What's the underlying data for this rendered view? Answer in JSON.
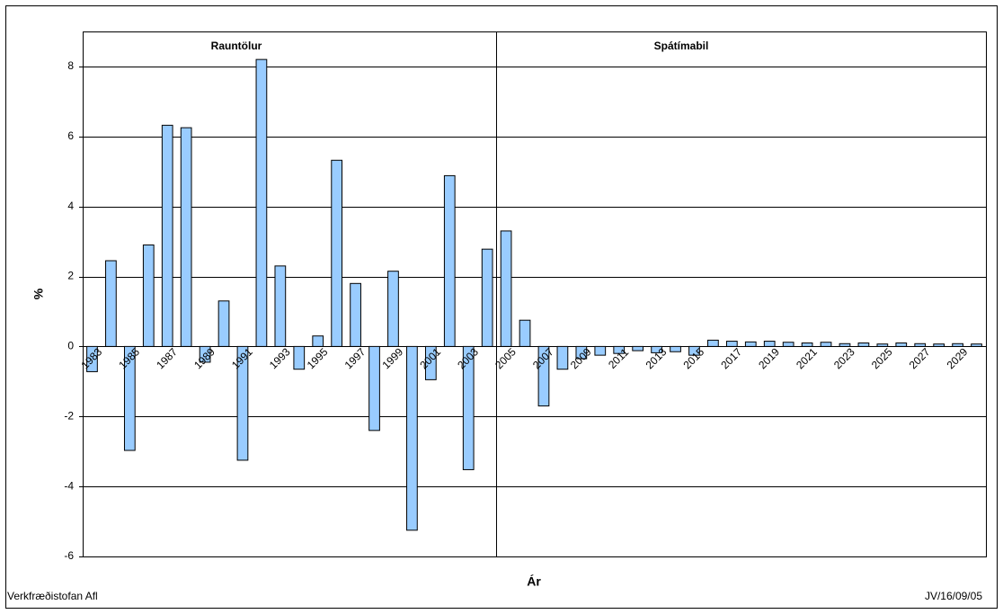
{
  "chart_data": {
    "type": "bar",
    "y_label": "%",
    "x_label": "Ár",
    "annotations": [
      "Rauntölur",
      "Spátímabil"
    ],
    "footer_left": "Verkfræðistofan Afl",
    "footer_right": "JV/16/09/05",
    "categories": [
      "1983",
      null,
      "1985",
      null,
      "1987",
      null,
      "1989",
      null,
      "1991",
      null,
      "1993",
      null,
      "1995",
      null,
      "1997",
      null,
      "1999",
      null,
      "2001",
      null,
      "2003",
      null,
      "2005",
      null,
      "2007",
      null,
      "2009",
      null,
      "2011",
      null,
      "2013",
      null,
      "2015",
      null,
      "2017",
      null,
      "2019",
      null,
      "2021",
      null,
      "2023",
      null,
      "2025",
      null,
      "2027",
      null,
      "2029",
      null
    ],
    "values": [
      -0.72,
      2.45,
      -2.97,
      2.9,
      6.32,
      6.25,
      -0.45,
      1.3,
      -3.25,
      8.2,
      2.3,
      -0.65,
      0.3,
      5.32,
      1.8,
      -2.4,
      2.15,
      -5.25,
      -0.95,
      4.88,
      -3.52,
      2.78,
      3.3,
      0.75,
      -1.7,
      -0.65,
      -0.35,
      -0.25,
      -0.2,
      -0.12,
      -0.18,
      -0.15,
      -0.25,
      0.18,
      0.15,
      0.13,
      0.15,
      0.12,
      0.1,
      0.12,
      0.08,
      0.1,
      0.07,
      0.1,
      0.08,
      0.07,
      0.08,
      0.07
    ],
    "color": "#99ccff",
    "ylim": [
      -6,
      9
    ],
    "yticks": [
      -6,
      -4,
      -2,
      0,
      2,
      4,
      6,
      8
    ],
    "grid": true
  }
}
